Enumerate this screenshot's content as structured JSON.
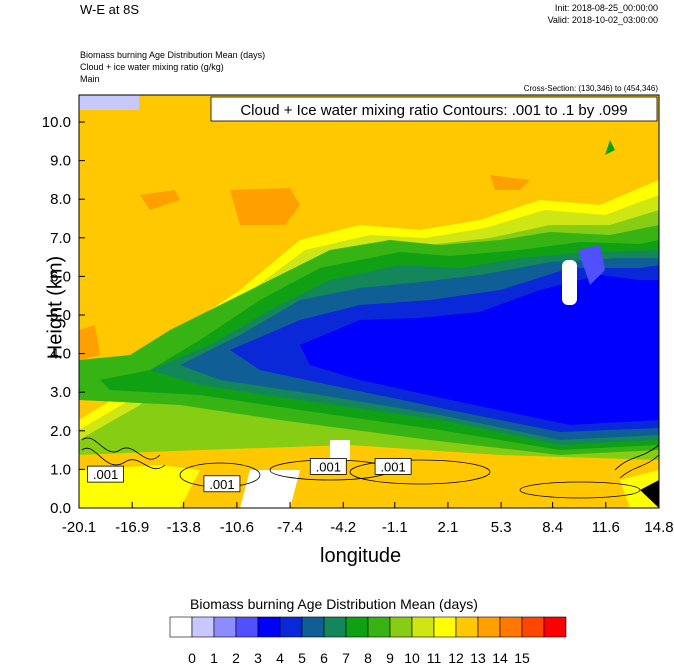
{
  "header": {
    "title": "W-E at 8S",
    "init": "Init: 2018-08-25_00:00:00",
    "valid": "Valid: 2018-10-02_03:00:00",
    "field1": "Biomass burning Age Distribution Mean   (days)",
    "field2": "Cloud + ice water mixing ratio   (g/kg)",
    "field3": "Main",
    "cross_section": "Cross-Section: (130,346) to (454,346)"
  },
  "chart_data": {
    "type": "heatmap",
    "title": "W-E at 8S",
    "contour_label": "Cloud + Ice water mixing ratio Contours: .001 to .1 by .099",
    "xlabel": "longitude",
    "ylabel": "Height (km)",
    "x_ticks": [
      "-20.1",
      "-16.9",
      "-13.8",
      "-10.6",
      "-7.4",
      "-4.2",
      "-1.1",
      "2.1",
      "5.3",
      "8.4",
      "11.6",
      "14.8"
    ],
    "y_ticks": [
      "0.0",
      "1.0",
      "2.0",
      "3.0",
      "4.0",
      "5.0",
      "6.0",
      "7.0",
      "8.0",
      "9.0",
      "10.0"
    ],
    "xlim": [
      -20.1,
      14.8
    ],
    "ylim": [
      0.0,
      10.7
    ],
    "contour_levels": [
      0.001,
      0.1
    ],
    "contour_value_labels": [
      ".001",
      ".001",
      ".001",
      ".001"
    ],
    "colorbar": {
      "title": "Biomass burning Age Distribution Mean  (days)",
      "levels": [
        "0",
        "1",
        "2",
        "3",
        "4",
        "5",
        "6",
        "7",
        "8",
        "9",
        "10",
        "11",
        "12",
        "13",
        "14",
        "15"
      ],
      "colors": [
        "#ffffff",
        "#c8c8ff",
        "#8c8cff",
        "#5050ff",
        "#0000ff",
        "#0a28d7",
        "#0f5f96",
        "#14875a",
        "#0fa014",
        "#37b414",
        "#87cd14",
        "#cde614",
        "#ffff00",
        "#ffc800",
        "#ffa000",
        "#ff7800",
        "#ff4600",
        "#ff0000"
      ]
    }
  }
}
